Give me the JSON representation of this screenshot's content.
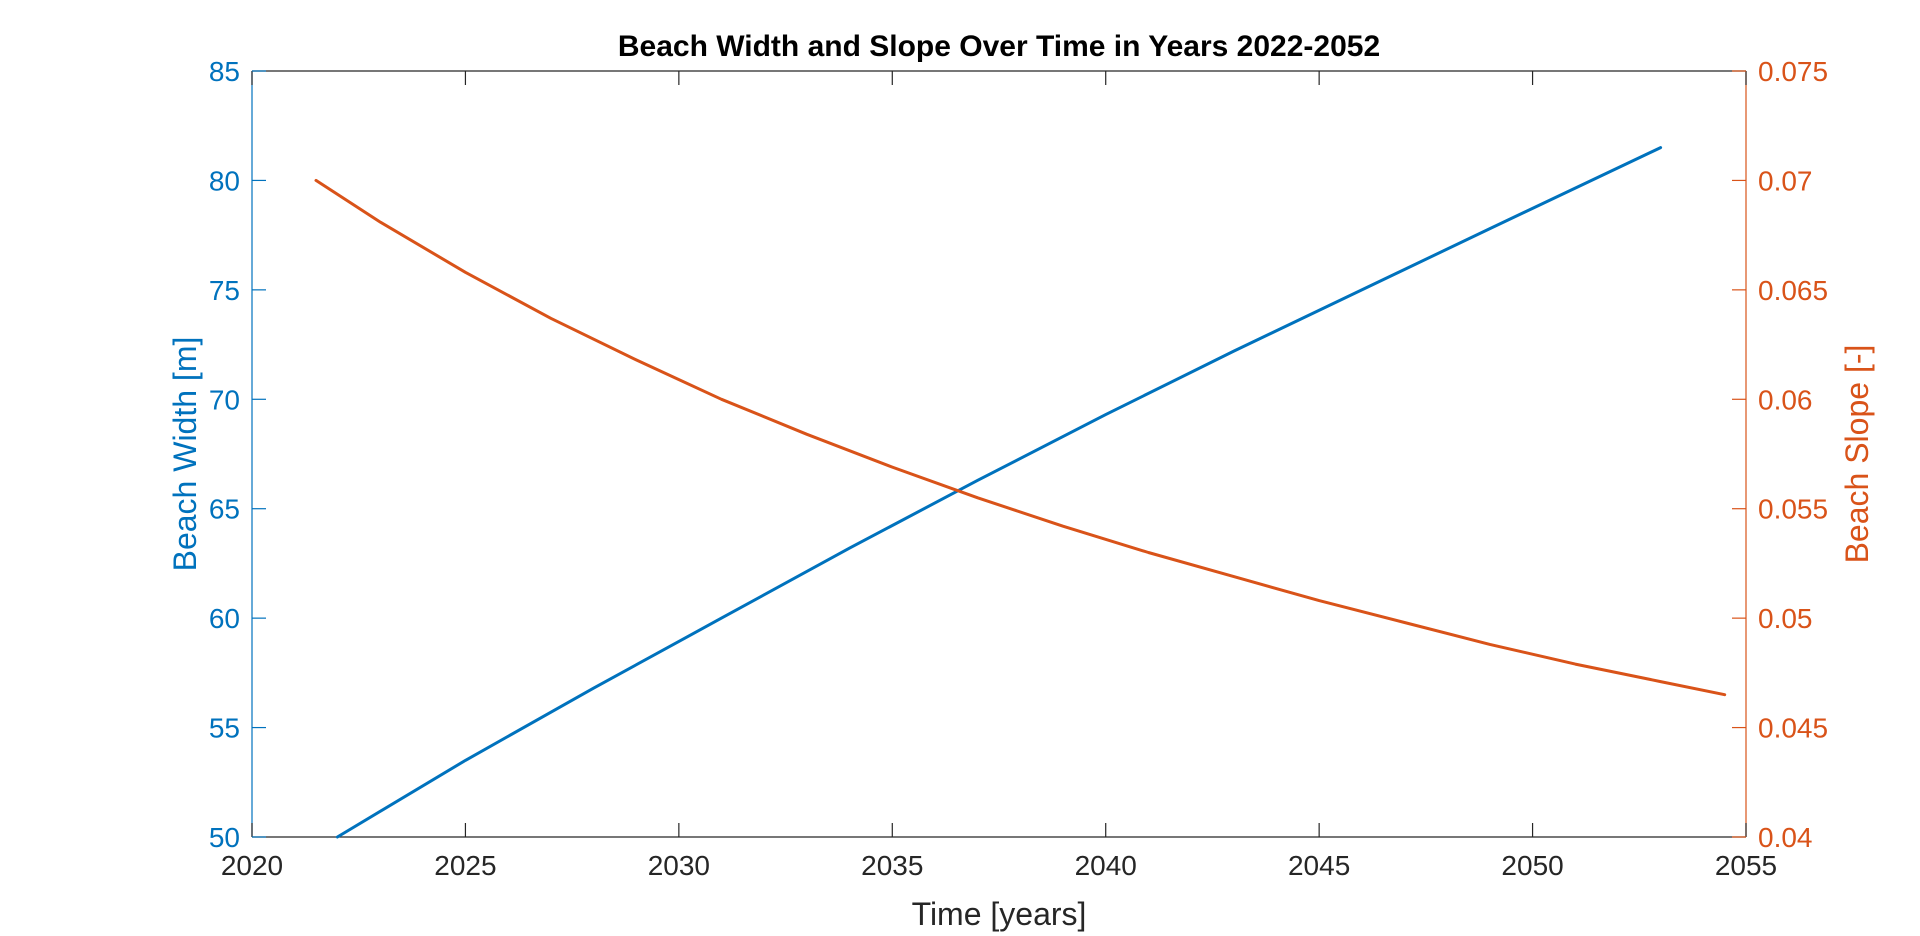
{
  "chart_data": {
    "type": "line",
    "title": "Beach Width and Slope Over Time in Years 2022-2052",
    "xlabel": "Time [years]",
    "xlim": [
      2020,
      2055
    ],
    "x_ticks": [
      "2020",
      "2025",
      "2030",
      "2035",
      "2040",
      "2045",
      "2050",
      "2055"
    ],
    "y_left": {
      "label": "Beach Width [m]",
      "lim": [
        50,
        85
      ],
      "ticks": [
        "50",
        "55",
        "60",
        "65",
        "70",
        "75",
        "80",
        "85"
      ],
      "color": "#0072BD"
    },
    "y_right": {
      "label": "Beach Slope [-]",
      "lim": [
        0.04,
        0.075
      ],
      "ticks": [
        "0.04",
        "0.045",
        "0.05",
        "0.055",
        "0.06",
        "0.065",
        "0.07",
        "0.075"
      ],
      "color": "#D95319"
    },
    "grid": false,
    "series": [
      {
        "axis": "left",
        "color": "#0072BD",
        "x": [
          2022,
          2025,
          2028,
          2031,
          2034,
          2037,
          2040,
          2043,
          2046,
          2049,
          2053
        ],
        "y": [
          50.0,
          53.5,
          56.8,
          60.0,
          63.2,
          66.3,
          69.3,
          72.2,
          75.0,
          77.8,
          81.5
        ]
      },
      {
        "axis": "right",
        "color": "#D95319",
        "x": [
          2021.5,
          2023,
          2025,
          2027,
          2029,
          2031,
          2033,
          2035,
          2037,
          2039,
          2041,
          2043,
          2045,
          2047,
          2049,
          2051,
          2053,
          2054.5
        ],
        "y": [
          0.07,
          0.0681,
          0.0658,
          0.0637,
          0.0618,
          0.06,
          0.0584,
          0.0569,
          0.0555,
          0.0542,
          0.053,
          0.0519,
          0.0508,
          0.0498,
          0.0488,
          0.0479,
          0.0471,
          0.0465
        ]
      }
    ]
  }
}
